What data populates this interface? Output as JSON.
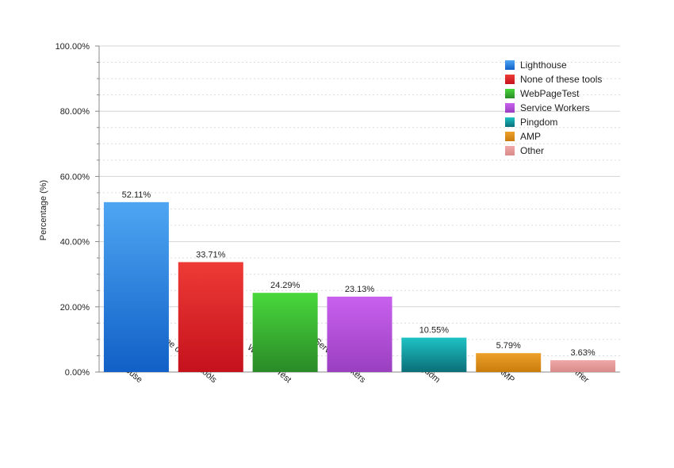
{
  "chart_data": {
    "type": "bar",
    "title": "",
    "xlabel": "",
    "ylabel": "Percentage (%)",
    "ylim": [
      0,
      100
    ],
    "yticks": [
      {
        "value": 0,
        "label": "0.00%"
      },
      {
        "value": 20,
        "label": "20.00%"
      },
      {
        "value": 40,
        "label": "40.00%"
      },
      {
        "value": 60,
        "label": "60.00%"
      },
      {
        "value": 80,
        "label": "80.00%"
      },
      {
        "value": 100,
        "label": "100.00%"
      }
    ],
    "grid": true,
    "legend_position": "top-right",
    "categories": [
      "Lighthouse",
      "None of these tools",
      "WebPageTest",
      "Service Workers",
      "Pingdom",
      "AMP",
      "Other"
    ],
    "values": [
      52.11,
      33.71,
      24.29,
      23.13,
      10.55,
      5.79,
      3.63
    ],
    "data_labels": [
      "52.11%",
      "33.71%",
      "24.29%",
      "23.13%",
      "10.55%",
      "5.79%",
      "3.63%"
    ],
    "colors": [
      {
        "top": "#4ea6f2",
        "bottom": "#1160c7"
      },
      {
        "top": "#ee3b36",
        "bottom": "#c5111c"
      },
      {
        "top": "#49d83c",
        "bottom": "#2a8a27"
      },
      {
        "top": "#c961ef",
        "bottom": "#9a3fc0"
      },
      {
        "top": "#1ec2c4",
        "bottom": "#0b6e78"
      },
      {
        "top": "#eda12a",
        "bottom": "#c97c0c"
      },
      {
        "top": "#f0a8a8",
        "bottom": "#d98a8a"
      }
    ]
  }
}
